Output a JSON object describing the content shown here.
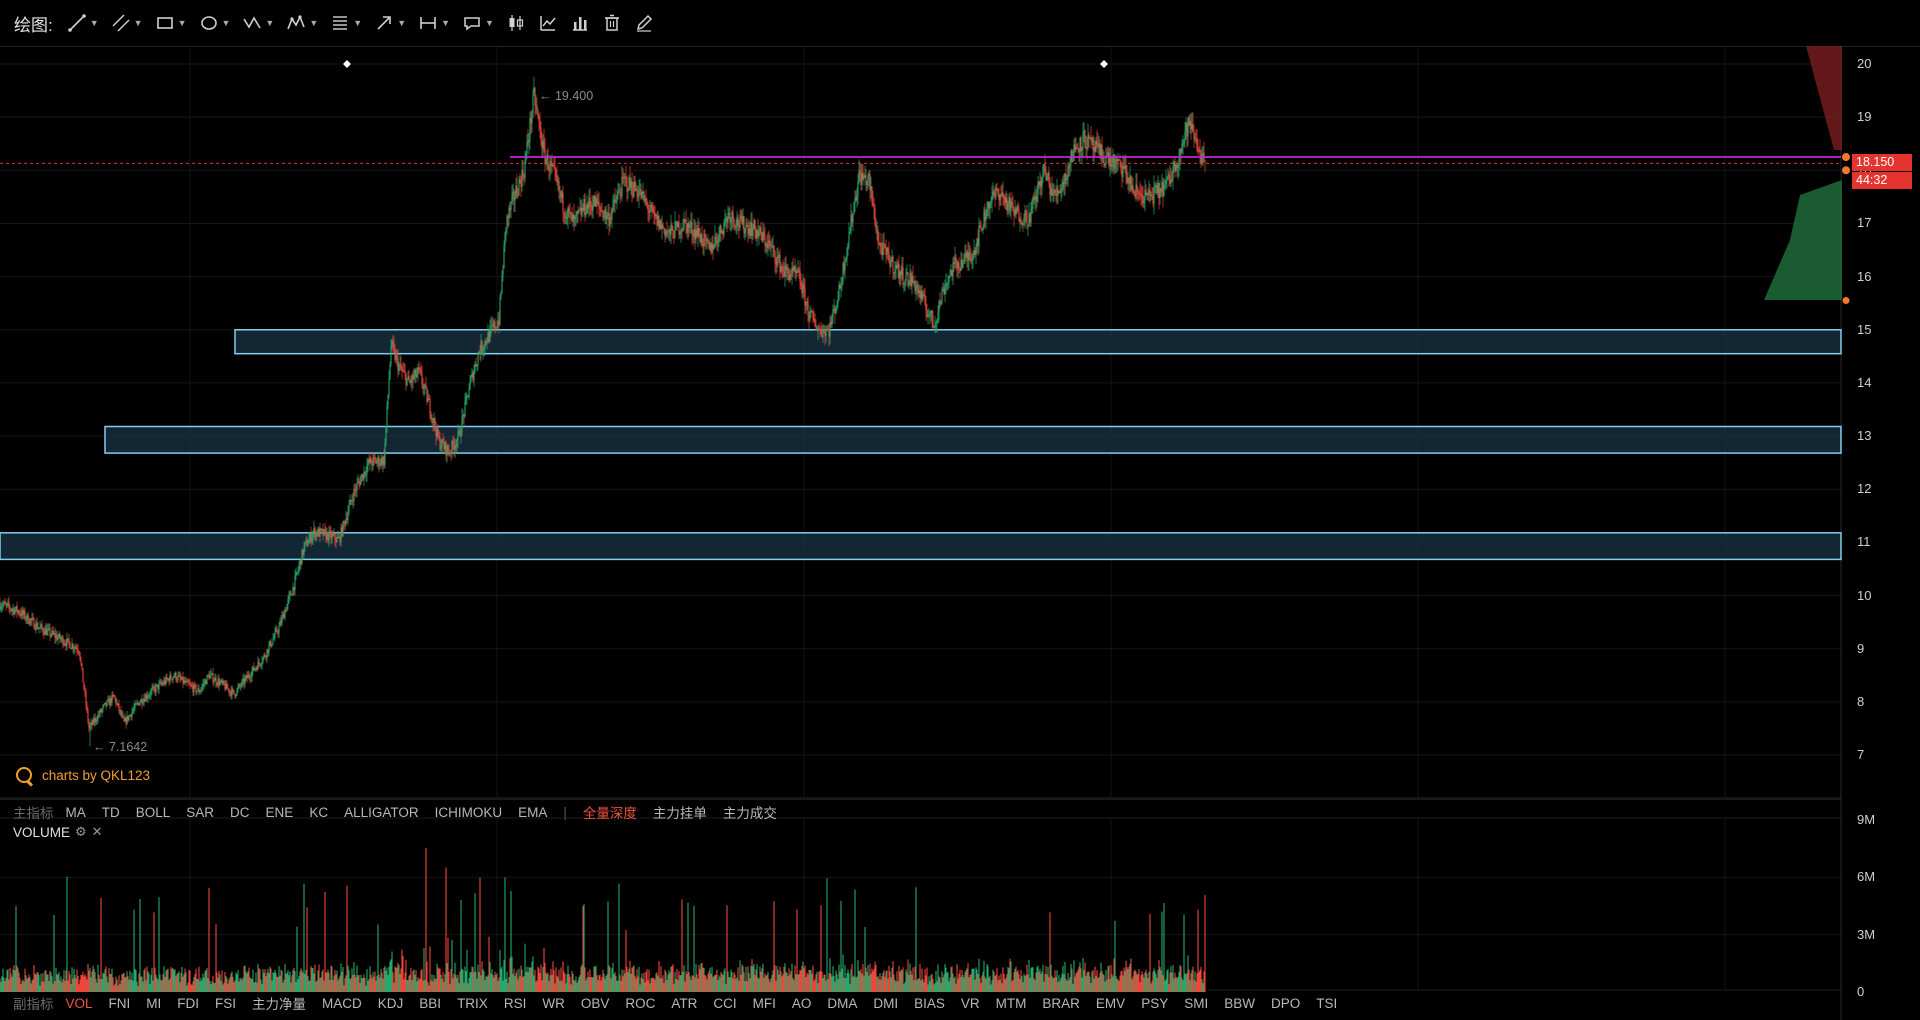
{
  "toolbar": {
    "label": "绘图:",
    "tools": [
      {
        "name": "trend-line-tool-icon",
        "caret": true
      },
      {
        "name": "parallel-line-tool-icon",
        "caret": true
      },
      {
        "name": "rectangle-tool-icon",
        "caret": true
      },
      {
        "name": "ellipse-tool-icon",
        "caret": true
      },
      {
        "name": "zigzag-tool-icon",
        "caret": true
      },
      {
        "name": "pattern-tool-icon",
        "caret": true
      },
      {
        "name": "fibonacci-tool-icon",
        "caret": true
      },
      {
        "name": "arrow-tool-icon",
        "caret": true
      },
      {
        "name": "measure-tool-icon",
        "caret": true
      },
      {
        "name": "annotation-tool-icon",
        "caret": true
      },
      {
        "name": "candle-type-icon",
        "caret": false
      },
      {
        "name": "indicator-chart-icon",
        "caret": false
      },
      {
        "name": "bar-stats-icon",
        "caret": false
      },
      {
        "name": "trash-icon",
        "caret": false
      },
      {
        "name": "pen-edit-icon",
        "caret": false
      }
    ]
  },
  "watermark": {
    "text": "charts by QKL123"
  },
  "price_axis": {
    "ticks": [
      "20",
      "19",
      "18",
      "17",
      "16",
      "15",
      "14",
      "13",
      "12",
      "11",
      "10",
      "9",
      "8",
      "7"
    ]
  },
  "volume_axis": {
    "ticks": [
      "9M",
      "6M",
      "3M",
      "0"
    ]
  },
  "price_tags": {
    "current": "18.150",
    "countdown": "44:32"
  },
  "extremes": {
    "high": "← 19.400",
    "low": "← 7.1642"
  },
  "main_indicators": {
    "title": "主指标",
    "items": [
      "MA",
      "TD",
      "BOLL",
      "SAR",
      "DC",
      "ENE",
      "KC",
      "ALLIGATOR",
      "ICHIMOKU",
      "EMA"
    ],
    "separator": "|",
    "extras": [
      "全量深度",
      "主力挂单",
      "主力成交"
    ],
    "highlighted": "全量深度"
  },
  "sub_indicators": {
    "title": "副指标",
    "items": [
      "VOL",
      "FNI",
      "MI",
      "FDI",
      "FSI",
      "主力净量",
      "MACD",
      "KDJ",
      "BBI",
      "TRIX",
      "RSI",
      "WR",
      "OBV",
      "ROC",
      "ATR",
      "CCI",
      "MFI",
      "AO",
      "DMA",
      "DMI",
      "BIAS",
      "VR",
      "MTM",
      "BRAR",
      "EMV",
      "PSY",
      "SMI",
      "BBW",
      "DPO",
      "TSI"
    ],
    "active": "VOL"
  },
  "volume_panel": {
    "title": "VOLUME"
  },
  "colors": {
    "up": "#26a96c",
    "down": "#f0453a",
    "zone_border": "#7fd0ec",
    "zone_fill": "#1a3344",
    "resistance_line": "#c026d3",
    "current_price_line": "#e5332e",
    "accent": "#f0553e"
  },
  "chart_data": {
    "type": "candlestick",
    "ylim": [
      6.6,
      20.2
    ],
    "volume_ylim": [
      0,
      9000000
    ],
    "price_range": {
      "low": 7.1642,
      "high": 19.4
    },
    "current_price": 18.15,
    "resistance_level": 18.25,
    "zones": [
      {
        "low": 14.55,
        "high": 15.0
      },
      {
        "low": 12.68,
        "high": 13.18
      },
      {
        "low": 10.68,
        "high": 11.18
      }
    ],
    "anchors": [
      [
        0,
        9.85
      ],
      [
        20,
        9.7
      ],
      [
        40,
        9.4
      ],
      [
        60,
        9.2
      ],
      [
        80,
        9.0
      ],
      [
        90,
        7.5
      ],
      [
        105,
        7.9
      ],
      [
        115,
        8.1
      ],
      [
        125,
        7.6
      ],
      [
        140,
        8.0
      ],
      [
        160,
        8.3
      ],
      [
        175,
        8.5
      ],
      [
        190,
        8.3
      ],
      [
        200,
        8.2
      ],
      [
        210,
        8.5
      ],
      [
        225,
        8.3
      ],
      [
        235,
        8.15
      ],
      [
        250,
        8.5
      ],
      [
        265,
        8.85
      ],
      [
        280,
        9.4
      ],
      [
        295,
        10.2
      ],
      [
        305,
        10.9
      ],
      [
        315,
        11.2
      ],
      [
        325,
        11.15
      ],
      [
        340,
        11.05
      ],
      [
        355,
        11.95
      ],
      [
        370,
        12.5
      ],
      [
        385,
        12.55
      ],
      [
        392,
        14.7
      ],
      [
        400,
        14.3
      ],
      [
        410,
        14.0
      ],
      [
        420,
        14.2
      ],
      [
        430,
        13.6
      ],
      [
        440,
        12.9
      ],
      [
        450,
        12.7
      ],
      [
        460,
        13.0
      ],
      [
        470,
        13.9
      ],
      [
        480,
        14.6
      ],
      [
        490,
        14.9
      ],
      [
        500,
        15.2
      ],
      [
        507,
        17.0
      ],
      [
        515,
        17.5
      ],
      [
        525,
        18.0
      ],
      [
        535,
        19.4
      ],
      [
        545,
        18.3
      ],
      [
        555,
        17.9
      ],
      [
        565,
        17.3
      ],
      [
        575,
        17.0
      ],
      [
        585,
        17.3
      ],
      [
        595,
        17.4
      ],
      [
        610,
        17.1
      ],
      [
        625,
        17.8
      ],
      [
        640,
        17.6
      ],
      [
        655,
        17.1
      ],
      [
        670,
        16.8
      ],
      [
        685,
        17.0
      ],
      [
        700,
        16.8
      ],
      [
        710,
        16.5
      ],
      [
        720,
        16.8
      ],
      [
        730,
        17.2
      ],
      [
        740,
        17.0
      ],
      [
        755,
        16.9
      ],
      [
        770,
        16.6
      ],
      [
        785,
        16.1
      ],
      [
        800,
        16.0
      ],
      [
        810,
        15.3
      ],
      [
        820,
        15.0
      ],
      [
        830,
        15.0
      ],
      [
        840,
        15.7
      ],
      [
        850,
        16.8
      ],
      [
        860,
        17.9
      ],
      [
        870,
        17.8
      ],
      [
        880,
        16.6
      ],
      [
        895,
        16.2
      ],
      [
        905,
        16.0
      ],
      [
        915,
        15.9
      ],
      [
        925,
        15.5
      ],
      [
        935,
        15.1
      ],
      [
        945,
        15.8
      ],
      [
        955,
        16.2
      ],
      [
        965,
        16.3
      ],
      [
        975,
        16.5
      ],
      [
        990,
        17.4
      ],
      [
        1000,
        17.6
      ],
      [
        1015,
        17.2
      ],
      [
        1030,
        17.1
      ],
      [
        1045,
        18.0
      ],
      [
        1055,
        17.5
      ],
      [
        1065,
        17.8
      ],
      [
        1075,
        18.4
      ],
      [
        1085,
        18.6
      ],
      [
        1095,
        18.4
      ],
      [
        1110,
        18.2
      ],
      [
        1125,
        18.0
      ],
      [
        1135,
        17.6
      ],
      [
        1150,
        17.5
      ],
      [
        1160,
        17.6
      ],
      [
        1170,
        17.8
      ],
      [
        1180,
        18.3
      ],
      [
        1190,
        18.9
      ],
      [
        1200,
        18.4
      ],
      [
        1205,
        18.15
      ]
    ]
  }
}
